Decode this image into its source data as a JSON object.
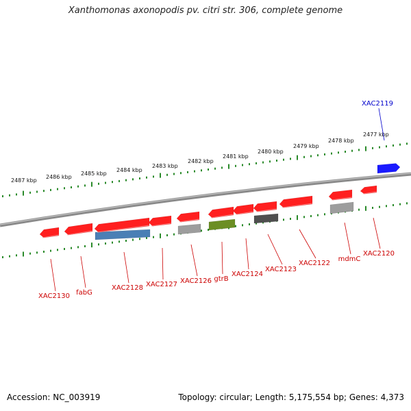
{
  "title": "Xanthomonas axonopodis pv. citri str. 306, complete genome",
  "footer": {
    "accession": "Accession: NC_003919",
    "summary": "Topology: circular; Length: 5,175,554 bp; Genes: 4,373"
  },
  "colors": {
    "backbone": "#8a8a8a",
    "tick": "#2a8a2a",
    "gene_red": "#ff1f1f",
    "gene_blue": "#1a1aff",
    "label_red": "#cc0000",
    "label_blue": "#0000cc",
    "band_blue": "#4a7fb5",
    "band_green": "#6b8e23",
    "band_gray": "#9d9d9d",
    "band_dark": "#4f4f4f"
  },
  "scale_labels": [
    "2487 kbp",
    "2486 kbp",
    "2485 kbp",
    "2484 kbp",
    "2483 kbp",
    "2482 kbp",
    "2481 kbp",
    "2480 kbp",
    "2479 kbp",
    "2478 kbp",
    "2477 kbp"
  ],
  "genes": [
    {
      "name": "XAC2119",
      "strand": "+",
      "color": "blue",
      "label_side": "top"
    },
    {
      "name": "XAC2120",
      "strand": "-",
      "color": "red",
      "label_side": "bottom"
    },
    {
      "name": "mdmC",
      "strand": "-",
      "color": "red",
      "label_side": "bottom"
    },
    {
      "name": "XAC2122",
      "strand": "-",
      "color": "red",
      "label_side": "bottom"
    },
    {
      "name": "XAC2123",
      "strand": "-",
      "color": "red",
      "label_side": "bottom"
    },
    {
      "name": "XAC2124",
      "strand": "-",
      "color": "red",
      "label_side": "bottom"
    },
    {
      "name": "gtrB",
      "strand": "-",
      "color": "red",
      "label_side": "bottom"
    },
    {
      "name": "XAC2126",
      "strand": "-",
      "color": "red",
      "label_side": "bottom"
    },
    {
      "name": "XAC2127",
      "strand": "-",
      "color": "red",
      "label_side": "bottom"
    },
    {
      "name": "XAC2128",
      "strand": "-",
      "color": "red",
      "label_side": "bottom"
    },
    {
      "name": "fabG",
      "strand": "-",
      "color": "red",
      "label_side": "bottom"
    },
    {
      "name": "XAC2130",
      "strand": "-",
      "color": "red",
      "label_side": "bottom"
    }
  ]
}
